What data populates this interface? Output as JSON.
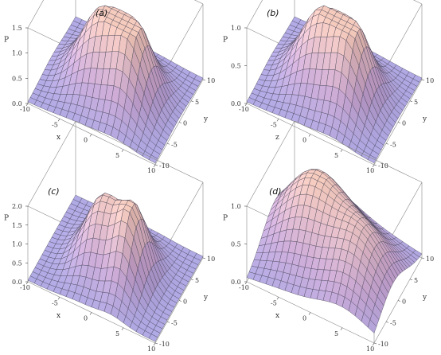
{
  "chart_data": [
    {
      "type": "surface",
      "panel_label": "(a)",
      "xlabel": "x",
      "ylabel": "y",
      "zlabel": "P",
      "x_range": [
        -10,
        10
      ],
      "y_range": [
        -10,
        10
      ],
      "z_range": [
        0,
        1.5
      ],
      "x_ticks": [
        "-10",
        "-5",
        "0",
        "5",
        "10"
      ],
      "y_ticks": [
        "-10",
        "-5",
        "0",
        "5",
        "10"
      ],
      "z_ticks": [
        "0.0",
        "0.5",
        "1.0",
        "1.5"
      ],
      "peaks": [
        {
          "x": -2,
          "y": 0,
          "height": 1.45,
          "sx": 3.2,
          "sy": 4.0
        },
        {
          "x": 3.5,
          "y": -1,
          "height": 1.3,
          "sx": 2.5,
          "sy": 4.0
        }
      ]
    },
    {
      "type": "surface",
      "panel_label": "(b)",
      "xlabel": "z",
      "ylabel": "y",
      "zlabel": "P",
      "x_range": [
        -10,
        10
      ],
      "y_range": [
        -10,
        10
      ],
      "z_range": [
        0,
        1.0
      ],
      "x_ticks": [
        "-10",
        "-5",
        "0",
        "5",
        "10"
      ],
      "y_ticks": [
        "-10",
        "-5",
        "0",
        "5",
        "10"
      ],
      "z_ticks": [
        "0.0",
        "0.5",
        "1.0"
      ],
      "peaks": [
        {
          "x": -2,
          "y": 0,
          "height": 0.95,
          "sx": 3.2,
          "sy": 4.0
        },
        {
          "x": 3.5,
          "y": -1,
          "height": 0.85,
          "sx": 2.5,
          "sy": 4.0
        }
      ]
    },
    {
      "type": "surface",
      "panel_label": "(c)",
      "xlabel": "x",
      "ylabel": "y",
      "zlabel": "P",
      "x_range": [
        -10,
        10
      ],
      "y_range": [
        -10,
        10
      ],
      "z_range": [
        0,
        2.0
      ],
      "x_ticks": [
        "-10",
        "-5",
        "0",
        "5",
        "10"
      ],
      "y_ticks": [
        "-10",
        "-5",
        "0",
        "5",
        "10"
      ],
      "z_ticks": [
        "0.0",
        "0.5",
        "1.0",
        "1.5",
        "2.0"
      ],
      "peaks": [
        {
          "x": -2,
          "y": 0,
          "height": 1.7,
          "sx": 2.5,
          "sy": 4.0
        },
        {
          "x": 3,
          "y": -1,
          "height": 1.8,
          "sx": 2.0,
          "sy": 4.0
        }
      ]
    },
    {
      "type": "surface",
      "panel_label": "(d)",
      "xlabel": "x",
      "ylabel": "y",
      "zlabel": "P",
      "x_range": [
        -10,
        10
      ],
      "y_range": [
        -10,
        10
      ],
      "z_range": [
        0,
        1.0
      ],
      "x_ticks": [
        "-10",
        "-5",
        "0",
        "5",
        "10"
      ],
      "y_ticks": [
        "-10",
        "-5",
        "0",
        "5",
        "10"
      ],
      "z_ticks": [
        "0.0",
        "0.5",
        "1.0"
      ],
      "peaks": [
        {
          "x": -4,
          "y": 2,
          "height": 0.95,
          "sx": 4.5,
          "sy": 5.5
        },
        {
          "x": 5,
          "y": -2,
          "height": 0.7,
          "sx": 4.0,
          "sy": 5.5
        }
      ]
    }
  ]
}
